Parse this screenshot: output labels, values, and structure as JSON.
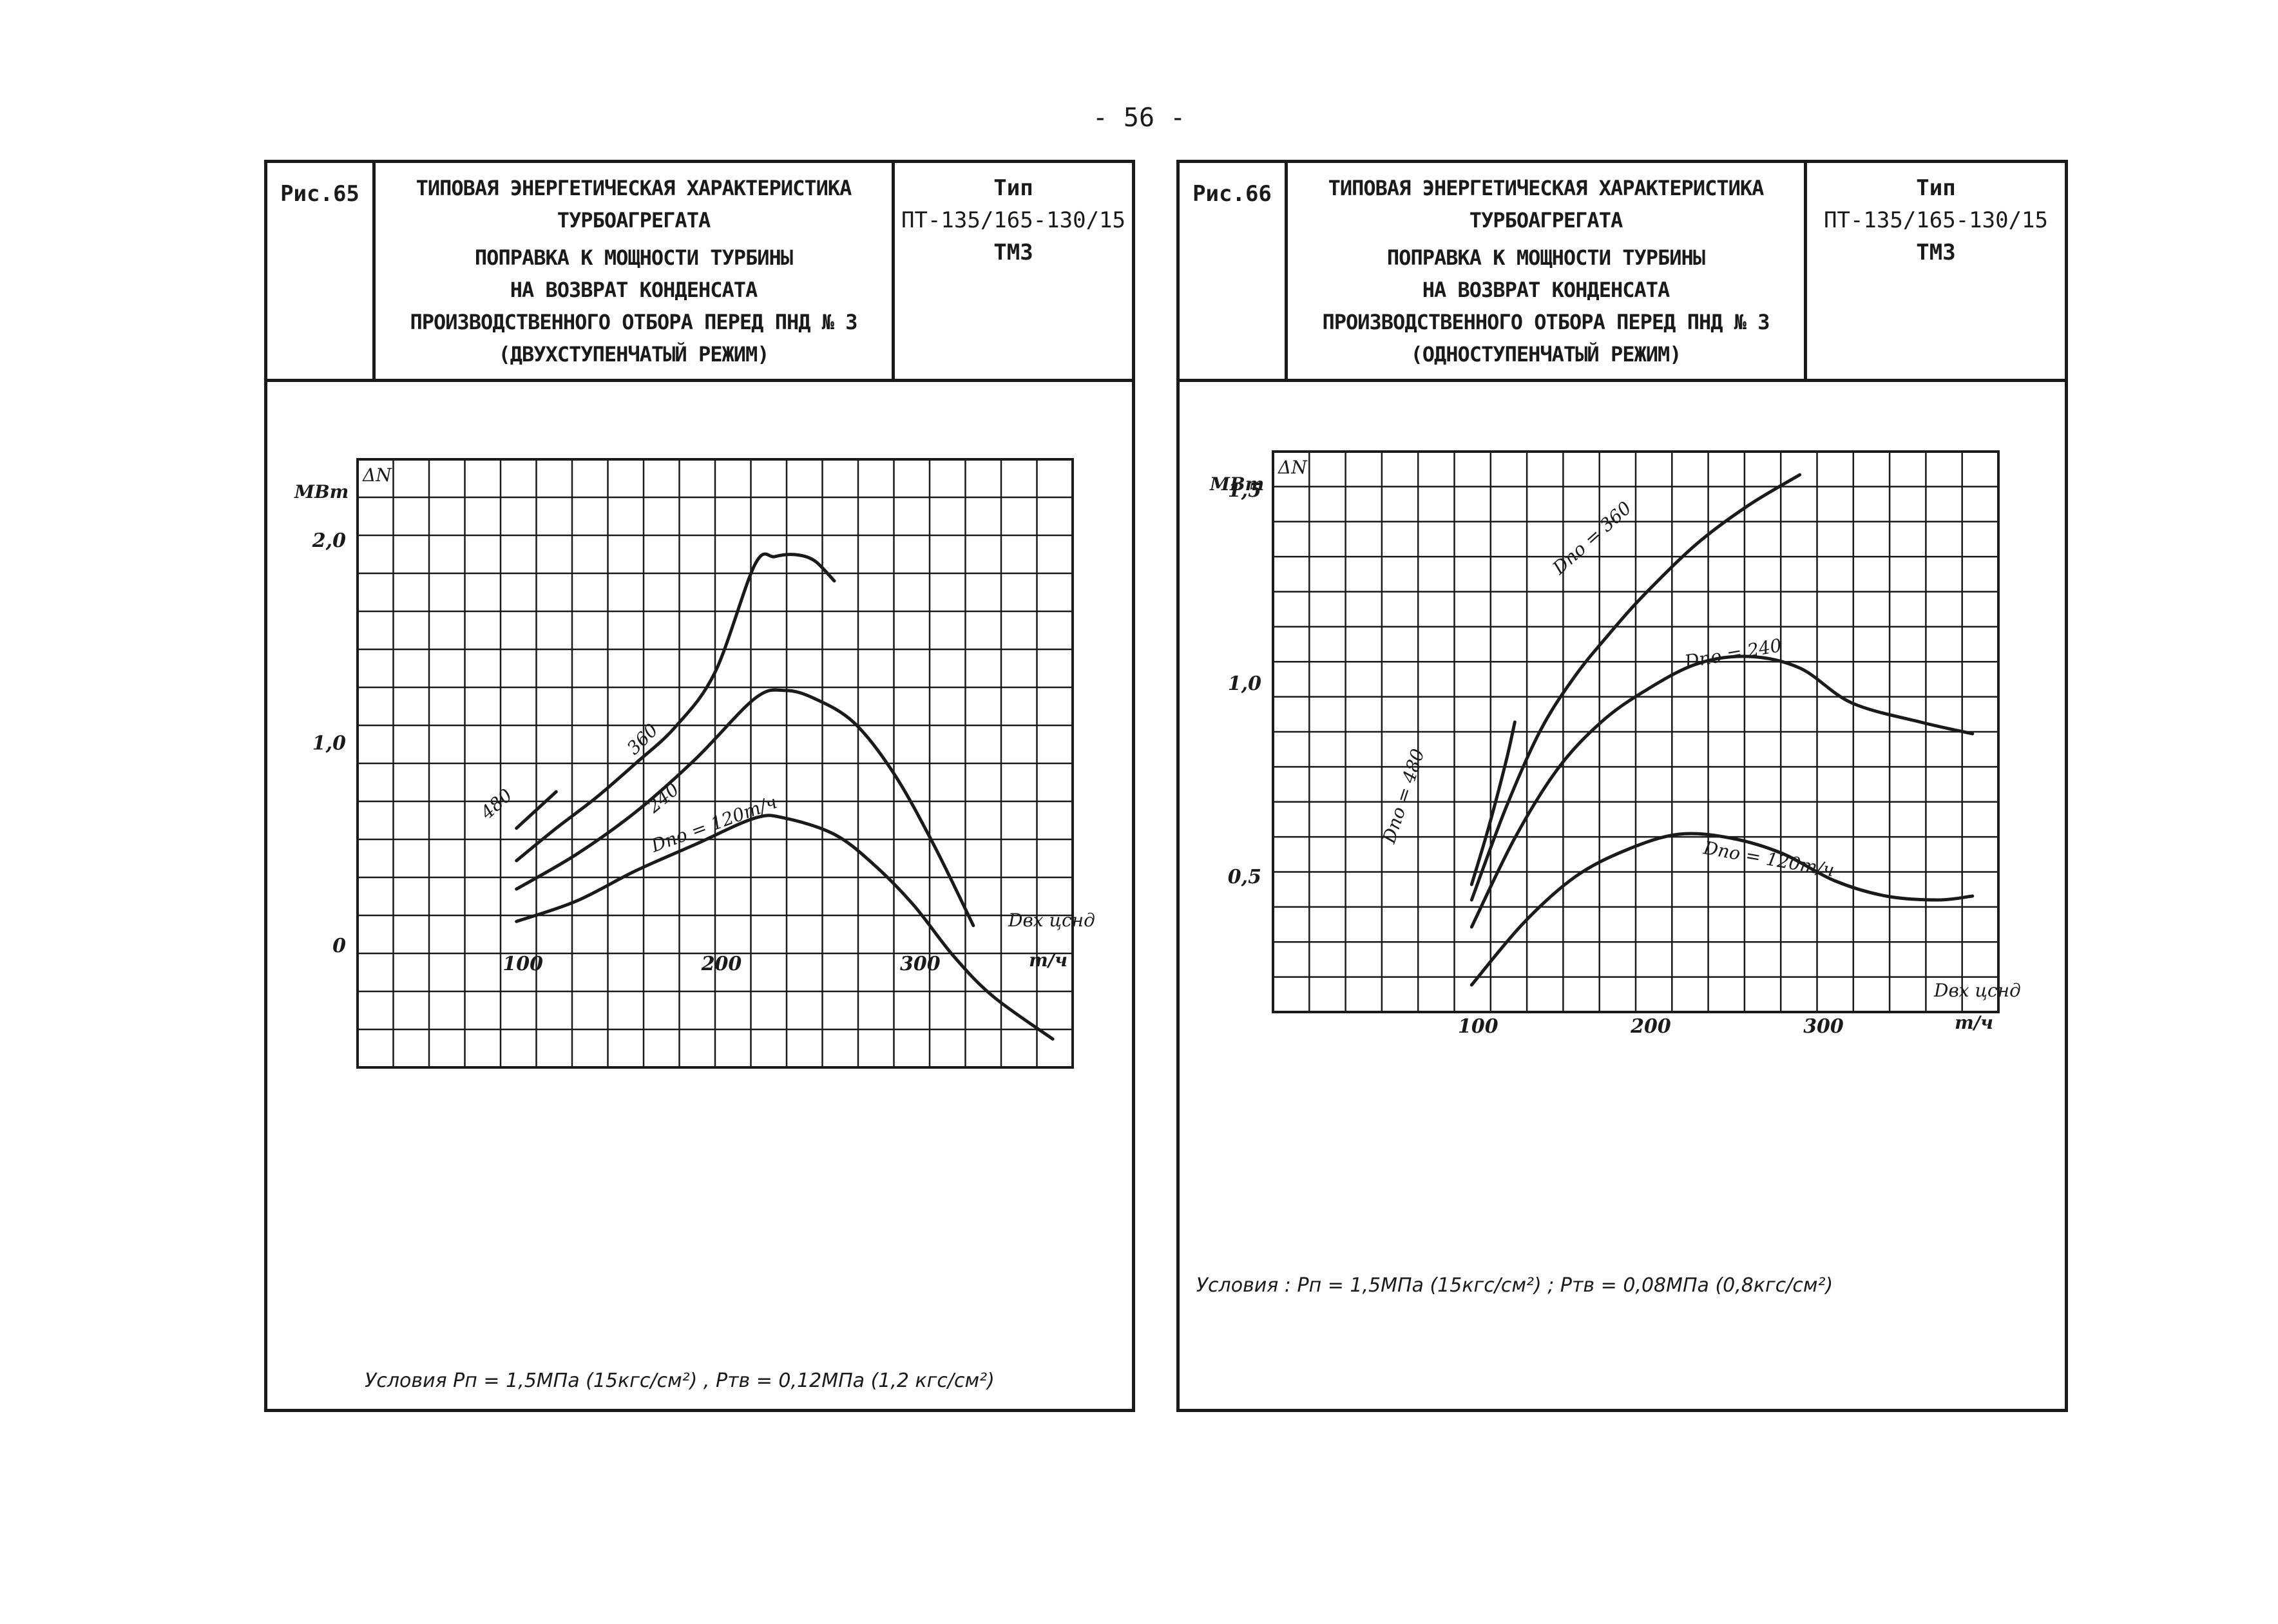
{
  "page_number": "- 56 -",
  "figures": [
    {
      "fig_label": "Рис.65",
      "title": {
        "line1": "ТИПОВАЯ ЭНЕРГЕТИЧЕСКАЯ ХАРАКТЕРИСТИКА",
        "line2": "ТУРБОАГРЕГАТА",
        "line3": "ПОПРАВКА К МОЩНОСТИ ТУРБИНЫ",
        "line4": "НА ВОЗВРАТ КОНДЕНСАТА",
        "line5": "ПРОИЗВОДСТВЕННОГО ОТБОРА ПЕРЕД ПНД № 3",
        "line6": "(ДВУХСТУПЕНЧАТЫЙ РЕЖИМ)"
      },
      "type": {
        "label": "Тип",
        "model": "ПТ-135/165-130/15",
        "maker": "ТМЗ"
      },
      "conditions": "Условия  Pп = 1,5МПа (15кгс/см²) ,  Pтв = 0,12МПа (1,2 кгс/см²)"
    },
    {
      "fig_label": "Рис.66",
      "title": {
        "line1": "ТИПОВАЯ ЭНЕРГЕТИЧЕСКАЯ ХАРАКТЕРИСТИКА",
        "line2": "ТУРБОАГРЕГАТА",
        "line3": "ПОПРАВКА К МОЩНОСТИ ТУРБИНЫ",
        "line4": "НА ВОЗВРАТ КОНДЕНСАТА",
        "line5": "ПРОИЗВОДСТВЕННОГО ОТБОРА ПЕРЕД ПНД № 3",
        "line6": "(ОДНОСТУПЕНЧАТЫЙ РЕЖИМ)"
      },
      "type": {
        "label": "Тип",
        "model": "ПТ-135/165-130/15",
        "maker": "ТМЗ"
      },
      "conditions": "Условия :  Pп = 1,5МПа (15кгс/см²) ;  Pтв = 0,08МПа (0,8кгс/см²)"
    }
  ],
  "chart_data": [
    {
      "type": "line",
      "figure": "Рис.65",
      "ylabel": "ΔN",
      "yunit": "МВт",
      "xlabel": "Dвх цснд",
      "xunit": "т/ч",
      "xlim": [
        20,
        380
      ],
      "ylim": [
        -0.6,
        2.4
      ],
      "xticks": [
        100,
        200,
        300
      ],
      "xtick_labels": [
        "100",
        "200",
        "300"
      ],
      "yticks": [
        0,
        1.0,
        2.0
      ],
      "ytick_labels": [
        "0",
        "1,0",
        "2,0"
      ],
      "grid": true,
      "series": [
        {
          "name": "480",
          "label": "480",
          "x": [
            100,
            110,
            120
          ],
          "y": [
            0.58,
            0.67,
            0.76
          ]
        },
        {
          "name": "360",
          "label": "360",
          "x": [
            100,
            120,
            140,
            160,
            180,
            200,
            220,
            230,
            240,
            250,
            260
          ],
          "y": [
            0.42,
            0.58,
            0.73,
            0.9,
            1.08,
            1.35,
            1.88,
            1.92,
            1.93,
            1.9,
            1.8
          ]
        },
        {
          "name": "240",
          "label": "240",
          "x": [
            100,
            130,
            160,
            190,
            220,
            235,
            250,
            270,
            290,
            310,
            330
          ],
          "y": [
            0.28,
            0.45,
            0.66,
            0.92,
            1.22,
            1.26,
            1.22,
            1.1,
            0.85,
            0.5,
            0.1
          ]
        },
        {
          "name": "120",
          "label": "Dпо = 120т/ч",
          "x": [
            100,
            130,
            160,
            190,
            220,
            235,
            260,
            280,
            300,
            320,
            340,
            370
          ],
          "y": [
            0.12,
            0.22,
            0.37,
            0.5,
            0.63,
            0.63,
            0.55,
            0.4,
            0.2,
            -0.05,
            -0.25,
            -0.46
          ]
        }
      ]
    },
    {
      "type": "line",
      "figure": "Рис.66",
      "ylabel": "ΔN",
      "yunit": "МВт",
      "xlabel": "Dвх цснд",
      "xunit": "т/ч",
      "xlim": [
        -15,
        405
      ],
      "ylim": [
        0.15,
        1.6
      ],
      "xticks": [
        100,
        200,
        300
      ],
      "xtick_labels": [
        "100",
        "200",
        "300"
      ],
      "yticks": [
        0.5,
        1.0,
        1.5
      ],
      "ytick_labels": [
        "0,5",
        "1,0",
        "1,5"
      ],
      "grid": true,
      "series": [
        {
          "name": "480",
          "label": "Dпо = 480",
          "x": [
            100,
            110,
            120,
            125
          ],
          "y": [
            0.48,
            0.63,
            0.8,
            0.9
          ]
        },
        {
          "name": "360",
          "label": "Dпо = 360",
          "x": [
            100,
            120,
            140,
            160,
            180,
            200,
            230,
            260,
            290
          ],
          "y": [
            0.44,
            0.68,
            0.88,
            1.02,
            1.13,
            1.23,
            1.36,
            1.46,
            1.54
          ]
        },
        {
          "name": "240",
          "label": "Dпо = 240",
          "x": [
            100,
            125,
            150,
            175,
            200,
            230,
            260,
            290,
            320,
            360,
            390
          ],
          "y": [
            0.37,
            0.6,
            0.78,
            0.9,
            0.98,
            1.05,
            1.07,
            1.04,
            0.95,
            0.9,
            0.87
          ]
        },
        {
          "name": "120",
          "label": "Dпо = 120т/ч",
          "x": [
            100,
            130,
            160,
            190,
            220,
            250,
            280,
            310,
            340,
            370,
            390
          ],
          "y": [
            0.22,
            0.38,
            0.5,
            0.57,
            0.61,
            0.6,
            0.56,
            0.49,
            0.45,
            0.44,
            0.45
          ]
        }
      ]
    }
  ]
}
